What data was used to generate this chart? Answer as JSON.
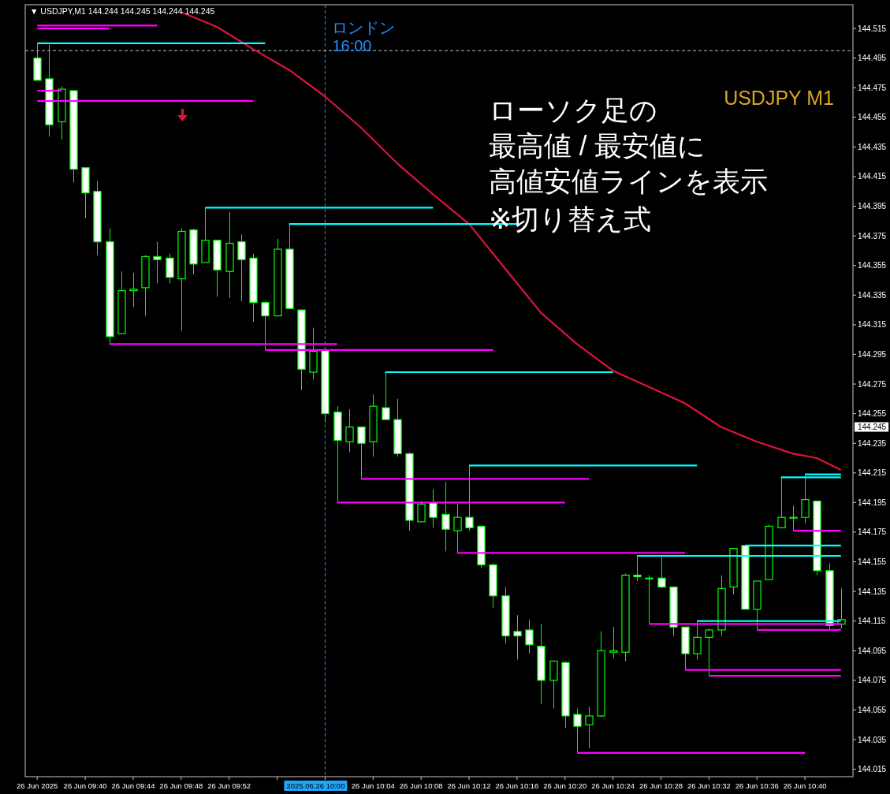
{
  "chart_data": {
    "type": "candlestick",
    "title": "▼ USDJPY,M1  144.244 144.245 144.244 144.245",
    "color": "#00ff00",
    "x": [
      "2025-06-26T09:36",
      "2025-06-26T09:37",
      "2025-06-26T09:38",
      "2025-06-26T09:39",
      "2025-06-26T09:40",
      "2025-06-26T09:41",
      "2025-06-26T09:42",
      "2025-06-26T09:43",
      "2025-06-26T09:44",
      "2025-06-26T09:45",
      "2025-06-26T09:46",
      "2025-06-26T09:47",
      "2025-06-26T09:48",
      "2025-06-26T09:49",
      "2025-06-26T09:50",
      "2025-06-26T09:51",
      "2025-06-26T09:52",
      "2025-06-26T09:53",
      "2025-06-26T09:54",
      "2025-06-26T09:55",
      "2025-06-26T09:56",
      "2025-06-26T09:57",
      "2025-06-26T09:58",
      "2025-06-26T09:59",
      "2025-06-26T10:00",
      "2025-06-26T10:01",
      "2025-06-26T10:02",
      "2025-06-26T10:03",
      "2025-06-26T10:04",
      "2025-06-26T10:05",
      "2025-06-26T10:06",
      "2025-06-26T10:07",
      "2025-06-26T10:08",
      "2025-06-26T10:09",
      "2025-06-26T10:10",
      "2025-06-26T10:11",
      "2025-06-26T10:12",
      "2025-06-26T10:13",
      "2025-06-26T10:14",
      "2025-06-26T10:15",
      "2025-06-26T10:16",
      "2025-06-26T10:17",
      "2025-06-26T10:18",
      "2025-06-26T10:19",
      "2025-06-26T10:20",
      "2025-06-26T10:21",
      "2025-06-26T10:22",
      "2025-06-26T10:23",
      "2025-06-26T10:24",
      "2025-06-26T10:25",
      "2025-06-26T10:26",
      "2025-06-26T10:27",
      "2025-06-26T10:28",
      "2025-06-26T10:29",
      "2025-06-26T10:30",
      "2025-06-26T10:31",
      "2025-06-26T10:32",
      "2025-06-26T10:33",
      "2025-06-26T10:34",
      "2025-06-26T10:35",
      "2025-06-26T10:36",
      "2025-06-26T10:37",
      "2025-06-26T10:38",
      "2025-06-26T10:39",
      "2025-06-26T10:40",
      "2025-06-26T10:41",
      "2025-06-26T10:42",
      "2025-06-26T10:43"
    ],
    "ohlc": [
      [
        144.495,
        144.505,
        144.48,
        144.48
      ],
      [
        144.481,
        144.504,
        144.442,
        144.45
      ],
      [
        144.452,
        144.476,
        144.44,
        144.474
      ],
      [
        144.473,
        144.473,
        144.411,
        144.42
      ],
      [
        144.421,
        144.421,
        144.387,
        144.404
      ],
      [
        144.405,
        144.412,
        144.362,
        144.371
      ],
      [
        144.371,
        144.38,
        144.302,
        144.307
      ],
      [
        144.309,
        144.351,
        144.309,
        144.338
      ],
      [
        144.338,
        144.35,
        144.327,
        144.339
      ],
      [
        144.34,
        144.362,
        144.321,
        144.361
      ],
      [
        144.361,
        144.371,
        144.343,
        144.359
      ],
      [
        144.36,
        144.363,
        144.343,
        144.347
      ],
      [
        144.346,
        144.38,
        144.311,
        144.378
      ],
      [
        144.379,
        144.38,
        144.349,
        144.356
      ],
      [
        144.357,
        144.394,
        144.357,
        144.372
      ],
      [
        144.372,
        144.372,
        144.334,
        144.352
      ],
      [
        144.351,
        144.391,
        144.333,
        144.37
      ],
      [
        144.371,
        144.376,
        144.331,
        144.359
      ],
      [
        144.36,
        144.363,
        144.317,
        144.33
      ],
      [
        144.33,
        144.331,
        144.298,
        144.321
      ],
      [
        144.321,
        144.373,
        144.321,
        144.366
      ],
      [
        144.366,
        144.383,
        144.326,
        144.326
      ],
      [
        144.325,
        144.325,
        144.271,
        144.285
      ],
      [
        144.283,
        144.313,
        144.278,
        144.297
      ],
      [
        144.298,
        144.298,
        144.249,
        144.255
      ],
      [
        144.256,
        144.26,
        144.195,
        144.237
      ],
      [
        144.236,
        144.258,
        144.229,
        144.246
      ],
      [
        144.246,
        144.246,
        144.211,
        144.235
      ],
      [
        144.236,
        144.268,
        144.226,
        144.26
      ],
      [
        144.259,
        144.283,
        144.251,
        144.251
      ],
      [
        144.251,
        144.265,
        144.226,
        144.228
      ],
      [
        144.228,
        144.229,
        144.176,
        144.183
      ],
      [
        144.182,
        144.196,
        144.182,
        144.194
      ],
      [
        144.195,
        144.204,
        144.178,
        144.185
      ],
      [
        144.187,
        144.209,
        144.162,
        144.177
      ],
      [
        144.176,
        144.194,
        144.161,
        144.185
      ],
      [
        144.185,
        144.22,
        144.176,
        144.178
      ],
      [
        144.179,
        144.179,
        144.151,
        144.153
      ],
      [
        144.153,
        144.154,
        144.124,
        144.132
      ],
      [
        144.132,
        144.138,
        144.1,
        144.105
      ],
      [
        144.108,
        144.119,
        144.089,
        144.105
      ],
      [
        144.109,
        144.116,
        144.093,
        144.099
      ],
      [
        144.098,
        144.113,
        144.059,
        144.075
      ],
      [
        144.075,
        144.088,
        144.056,
        144.088
      ],
      [
        144.087,
        144.088,
        144.043,
        144.051
      ],
      [
        144.052,
        144.056,
        144.026,
        144.044
      ],
      [
        144.045,
        144.057,
        144.029,
        144.051
      ],
      [
        144.051,
        144.108,
        144.05,
        144.095
      ],
      [
        144.094,
        144.111,
        144.09,
        144.095
      ],
      [
        144.094,
        144.147,
        144.088,
        144.146
      ],
      [
        144.146,
        144.159,
        144.142,
        144.145
      ],
      [
        144.144,
        144.146,
        144.113,
        144.144
      ],
      [
        144.144,
        144.158,
        144.137,
        144.138
      ],
      [
        144.138,
        144.138,
        144.105,
        144.111
      ],
      [
        144.111,
        144.111,
        144.082,
        144.093
      ],
      [
        144.093,
        144.115,
        144.089,
        144.104
      ],
      [
        144.104,
        144.11,
        144.078,
        144.109
      ],
      [
        144.109,
        144.146,
        144.105,
        144.137
      ],
      [
        144.138,
        144.164,
        144.133,
        144.164
      ],
      [
        144.166,
        144.166,
        144.123,
        144.123
      ],
      [
        144.123,
        144.142,
        144.109,
        144.142
      ],
      [
        144.143,
        144.18,
        144.143,
        144.179
      ],
      [
        144.178,
        144.212,
        144.178,
        144.185
      ],
      [
        144.185,
        144.193,
        144.176,
        144.185
      ],
      [
        144.185,
        144.214,
        144.181,
        144.197
      ],
      [
        144.196,
        144.196,
        144.146,
        144.149
      ],
      [
        144.149,
        144.154,
        144.109,
        144.112
      ],
      [
        144.113,
        144.137,
        144.11,
        144.116
      ]
    ],
    "series": [
      {
        "type": "line",
        "color": "#dc143c",
        "x": [
          "2025-06-26T09:48",
          "2025-06-26T09:51",
          "2025-06-26T09:54",
          "2025-06-26T09:57",
          "2025-06-26T10:00",
          "2025-06-26T10:03",
          "2025-06-26T10:06",
          "2025-06-26T10:09",
          "2025-06-26T10:12",
          "2025-06-26T10:15",
          "2025-06-26T10:18",
          "2025-06-26T10:21",
          "2025-06-26T10:24",
          "2025-06-26T10:27",
          "2025-06-26T10:30",
          "2025-06-26T10:33",
          "2025-06-26T10:36",
          "2025-06-26T10:39",
          "2025-06-26T10:41",
          "2025-06-26T10:43"
        ],
        "values": [
          144.526,
          144.516,
          144.501,
          144.487,
          144.469,
          144.448,
          144.424,
          144.403,
          144.383,
          144.353,
          144.323,
          144.302,
          144.284,
          144.273,
          144.262,
          144.246,
          144.236,
          144.228,
          144.225,
          144.217
        ]
      },
      {
        "type": "line",
        "color": "#ff00ff",
        "x": [
          "2025-06-26T09:36",
          "2025-06-26T09:46"
        ],
        "values": [
          144.517,
          144.517
        ]
      },
      {
        "type": "line",
        "color": "#ff00ff",
        "x": [
          "2025-06-26T09:36",
          "2025-06-26T09:42"
        ],
        "values": [
          144.515,
          144.515
        ]
      },
      {
        "type": "line",
        "color": "#ff00ff",
        "x": [
          "2025-06-26T09:36",
          "2025-06-26T09:38"
        ],
        "values": [
          144.473,
          144.473
        ]
      },
      {
        "type": "line",
        "color": "#ff00ff",
        "x": [
          "2025-06-26T09:36",
          "2025-06-26T09:54"
        ],
        "values": [
          144.466,
          144.466
        ]
      },
      {
        "type": "line",
        "color": "#ff00ff",
        "x": [
          "2025-06-26T09:42",
          "2025-06-26T10:01"
        ],
        "values": [
          144.302,
          144.302
        ]
      },
      {
        "type": "line",
        "color": "#ff00ff",
        "x": [
          "2025-06-26T09:55",
          "2025-06-26T10:14"
        ],
        "values": [
          144.298,
          144.298
        ]
      },
      {
        "type": "line",
        "color": "#ff00ff",
        "x": [
          "2025-06-26T10:03",
          "2025-06-26T10:22"
        ],
        "values": [
          144.211,
          144.211
        ]
      },
      {
        "type": "line",
        "color": "#ff00ff",
        "x": [
          "2025-06-26T10:01",
          "2025-06-26T10:20"
        ],
        "values": [
          144.195,
          144.195
        ]
      },
      {
        "type": "line",
        "color": "#ff00ff",
        "x": [
          "2025-06-26T10:11",
          "2025-06-26T10:30"
        ],
        "values": [
          144.161,
          144.161
        ]
      },
      {
        "type": "line",
        "color": "#ff00ff",
        "x": [
          "2025-06-26T10:27",
          "2025-06-26T10:43"
        ],
        "values": [
          144.113,
          144.113
        ]
      },
      {
        "type": "line",
        "color": "#ff00ff",
        "x": [
          "2025-06-26T10:36",
          "2025-06-26T10:43"
        ],
        "values": [
          144.109,
          144.109
        ]
      },
      {
        "type": "line",
        "color": "#ff00ff",
        "x": [
          "2025-06-26T10:30",
          "2025-06-26T10:43"
        ],
        "values": [
          144.082,
          144.082
        ]
      },
      {
        "type": "line",
        "color": "#ff00ff",
        "x": [
          "2025-06-26T10:32",
          "2025-06-26T10:43"
        ],
        "values": [
          144.078,
          144.078
        ]
      },
      {
        "type": "line",
        "color": "#ff00ff",
        "x": [
          "2025-06-26T10:21",
          "2025-06-26T10:40"
        ],
        "values": [
          144.026,
          144.026
        ]
      },
      {
        "type": "line",
        "color": "#ff00ff",
        "x": [
          "2025-06-26T10:39",
          "2025-06-26T10:43"
        ],
        "values": [
          144.176,
          144.176
        ]
      },
      {
        "type": "line",
        "color": "#00ffff",
        "x": [
          "2025-06-26T09:36",
          "2025-06-26T09:55"
        ],
        "values": [
          144.505,
          144.505
        ]
      },
      {
        "type": "line",
        "color": "#00ffff",
        "x": [
          "2025-06-26T09:50",
          "2025-06-26T10:09"
        ],
        "values": [
          144.394,
          144.394
        ]
      },
      {
        "type": "line",
        "color": "#00ffff",
        "x": [
          "2025-06-26T09:57",
          "2025-06-26T10:16"
        ],
        "values": [
          144.383,
          144.383
        ]
      },
      {
        "type": "line",
        "color": "#00ffff",
        "x": [
          "2025-06-26T10:05",
          "2025-06-26T10:24"
        ],
        "values": [
          144.283,
          144.283
        ]
      },
      {
        "type": "line",
        "color": "#00ffff",
        "x": [
          "2025-06-26T10:12",
          "2025-06-26T10:31"
        ],
        "values": [
          144.22,
          144.22
        ]
      },
      {
        "type": "line",
        "color": "#00ffff",
        "x": [
          "2025-06-26T10:26",
          "2025-06-26T10:43"
        ],
        "values": [
          144.159,
          144.159
        ]
      },
      {
        "type": "line",
        "color": "#00ffff",
        "x": [
          "2025-06-26T10:35",
          "2025-06-26T10:43"
        ],
        "values": [
          144.166,
          144.166
        ]
      },
      {
        "type": "line",
        "color": "#00ffff",
        "x": [
          "2025-06-26T10:31",
          "2025-06-26T10:43"
        ],
        "values": [
          144.115,
          144.115
        ]
      },
      {
        "type": "line",
        "color": "#00ffff",
        "x": [
          "2025-06-26T10:38",
          "2025-06-26T10:43"
        ],
        "values": [
          144.212,
          144.212
        ]
      },
      {
        "type": "line",
        "color": "#00ffff",
        "x": [
          "2025-06-26T10:40",
          "2025-06-26T10:43"
        ],
        "values": [
          144.214,
          144.214
        ]
      }
    ],
    "xlim": [
      "2025-06-26T09:35",
      "2025-06-26T10:44"
    ],
    "xticks": [
      {
        "value": "2025-06-26T09:36",
        "label": "26 Jun 2025"
      },
      {
        "value": "2025-06-26T09:40",
        "label": "26 Jun 09:40"
      },
      {
        "value": "2025-06-26T09:44",
        "label": "26 Jun 09:44"
      },
      {
        "value": "2025-06-26T09:48",
        "label": "26 Jun 09:48"
      },
      {
        "value": "2025-06-26T09:52",
        "label": "26 Jun 09:52"
      },
      {
        "value": "2025-06-26T09:56",
        "label": null
      },
      {
        "value": "2025-06-26T10:00",
        "label": null
      },
      {
        "value": "2025-06-26T10:04",
        "label": "26 Jun 10:04"
      },
      {
        "value": "2025-06-26T10:08",
        "label": "26 Jun 10:08"
      },
      {
        "value": "2025-06-26T10:12",
        "label": "26 Jun 10:12"
      },
      {
        "value": "2025-06-26T10:16",
        "label": "26 Jun 10:16"
      },
      {
        "value": "2025-06-26T10:20",
        "label": "26 Jun 10:20"
      },
      {
        "value": "2025-06-26T10:24",
        "label": "26 Jun 10:24"
      },
      {
        "value": "2025-06-26T10:28",
        "label": "26 Jun 10:28"
      },
      {
        "value": "2025-06-26T10:32",
        "label": "26 Jun 10:32"
      },
      {
        "value": "2025-06-26T10:36",
        "label": "26 Jun 10:36"
      },
      {
        "value": "2025-06-26T10:40",
        "label": "26 Jun 10:40"
      }
    ],
    "ylim": [
      144.01,
      144.531
    ],
    "yticks": [
      144.015,
      144.035,
      144.055,
      144.075,
      144.095,
      144.115,
      144.135,
      144.155,
      144.175,
      144.195,
      144.215,
      144.235,
      144.255,
      144.275,
      144.295,
      144.315,
      144.335,
      144.355,
      144.375,
      144.395,
      144.415,
      144.435,
      144.455,
      144.475,
      144.495,
      144.515
    ],
    "ref_lines": [
      {
        "axis": "x",
        "value": "2025-06-26T10:00",
        "label": "ロンドン\n16:00",
        "color": "#1e90ff",
        "line_style": "dashed"
      },
      {
        "axis": "y",
        "value": 144.5,
        "color": "#c0c0c0",
        "line_style": "dashed"
      }
    ],
    "annotations": [
      "USDJPY M1",
      "ローソク足の",
      "最高値 / 最安値に",
      "高値安値ラインを表示",
      "※切り替え式",
      "2025.06.26 10:00",
      "144.245"
    ]
  }
}
